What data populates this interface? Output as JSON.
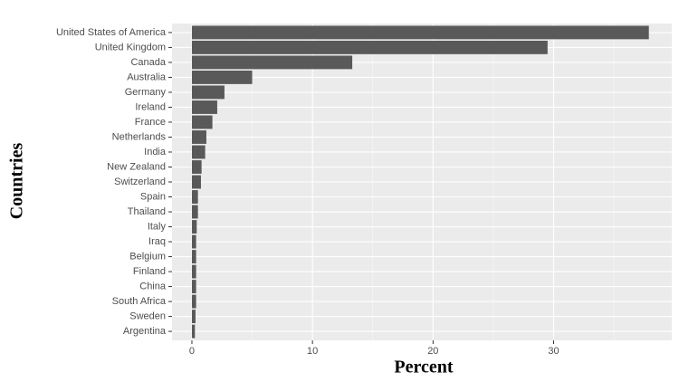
{
  "chart_data": {
    "type": "barh",
    "x_label": "Percent",
    "y_label": "Countries",
    "categories": [
      "United States of America",
      "United Kingdom",
      "Canada",
      "Australia",
      "Germany",
      "Ireland",
      "France",
      "Netherlands",
      "India",
      "New Zealand",
      "Switzerland",
      "Spain",
      "Thailand",
      "Italy",
      "Iraq",
      "Belgium",
      "Finland",
      "China",
      "South Africa",
      "Sweden",
      "Argentina"
    ],
    "values": [
      37.9,
      29.5,
      13.3,
      5.0,
      2.7,
      2.1,
      1.7,
      1.2,
      1.1,
      0.8,
      0.75,
      0.5,
      0.5,
      0.4,
      0.35,
      0.35,
      0.35,
      0.35,
      0.35,
      0.3,
      0.25
    ],
    "color": "#595959",
    "xlim": [
      -1.65,
      39.8
    ],
    "xticks": [
      0,
      10,
      20,
      30
    ],
    "minor_xticks": [
      5,
      15,
      25,
      35
    ],
    "grid": true
  }
}
